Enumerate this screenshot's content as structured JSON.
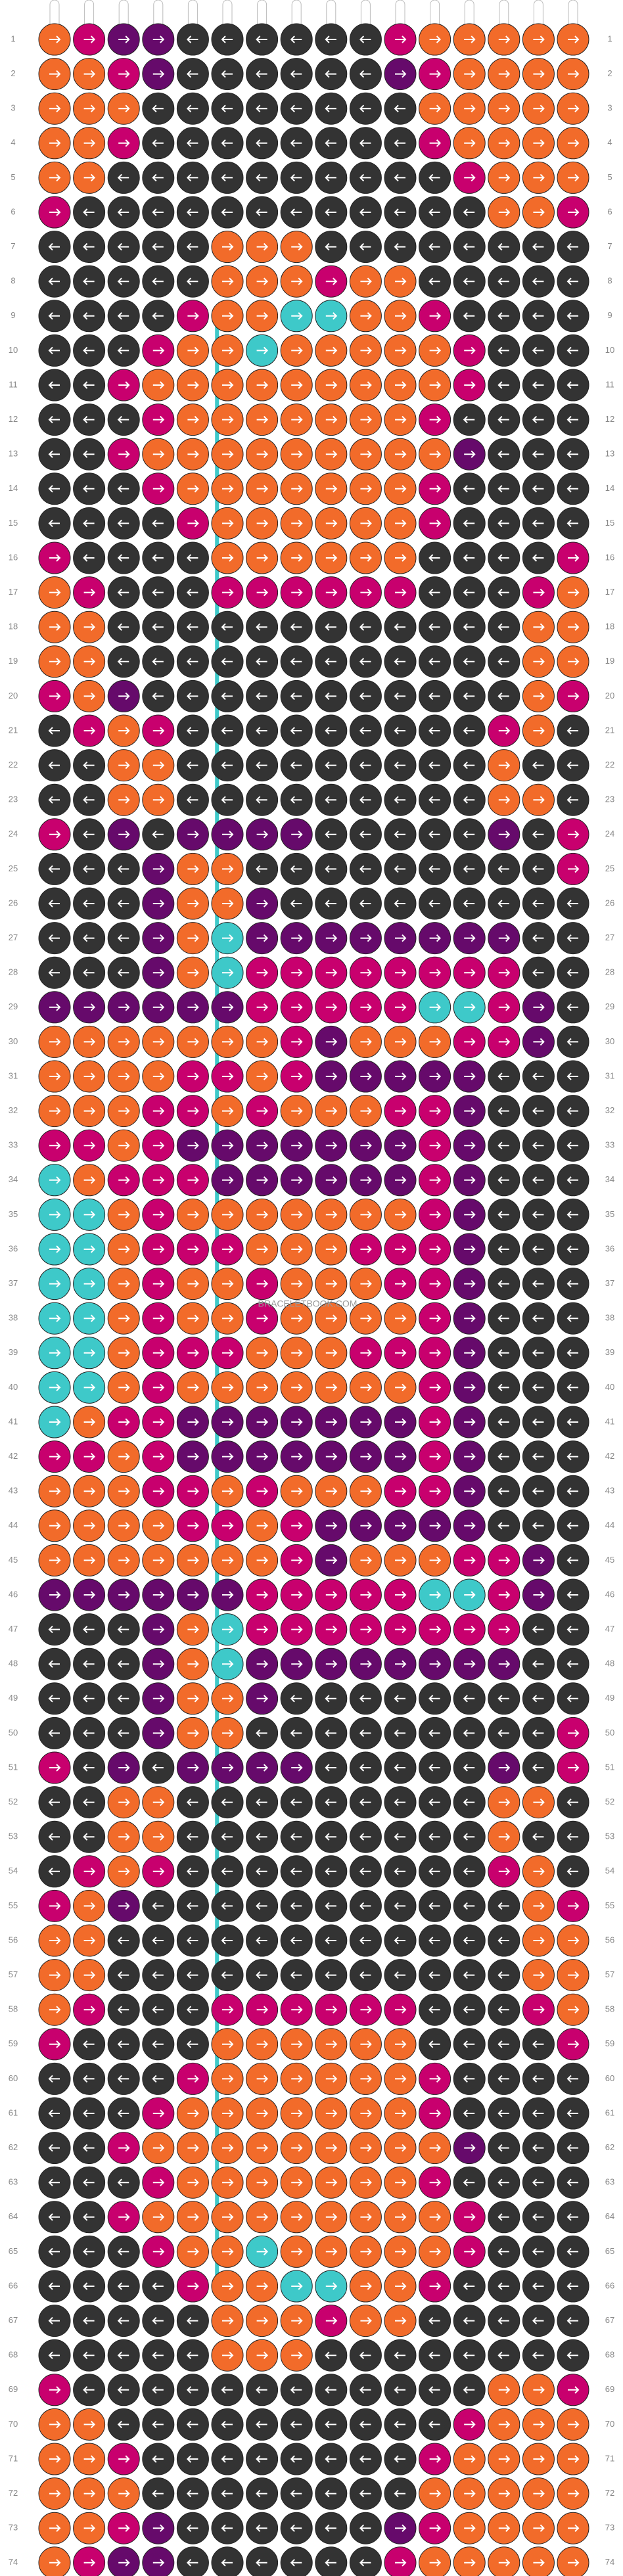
{
  "rows": [
    1,
    2,
    3,
    4,
    5,
    6,
    7,
    8,
    9,
    10,
    11,
    12,
    13,
    14,
    15,
    16,
    17,
    18,
    19,
    20,
    21,
    22,
    23,
    24,
    25,
    26,
    27,
    28,
    29,
    30,
    31,
    32,
    33,
    34,
    35,
    36,
    37,
    38,
    39,
    40,
    41,
    42,
    43,
    44,
    45,
    46,
    47,
    48,
    49,
    50,
    51,
    52,
    53,
    54,
    55,
    56,
    57,
    58,
    59,
    60,
    61,
    62,
    63,
    64,
    65,
    66,
    67,
    68,
    69,
    70,
    71,
    72,
    73,
    74
  ],
  "watermark": "BRACELETBOOK.COM"
}
